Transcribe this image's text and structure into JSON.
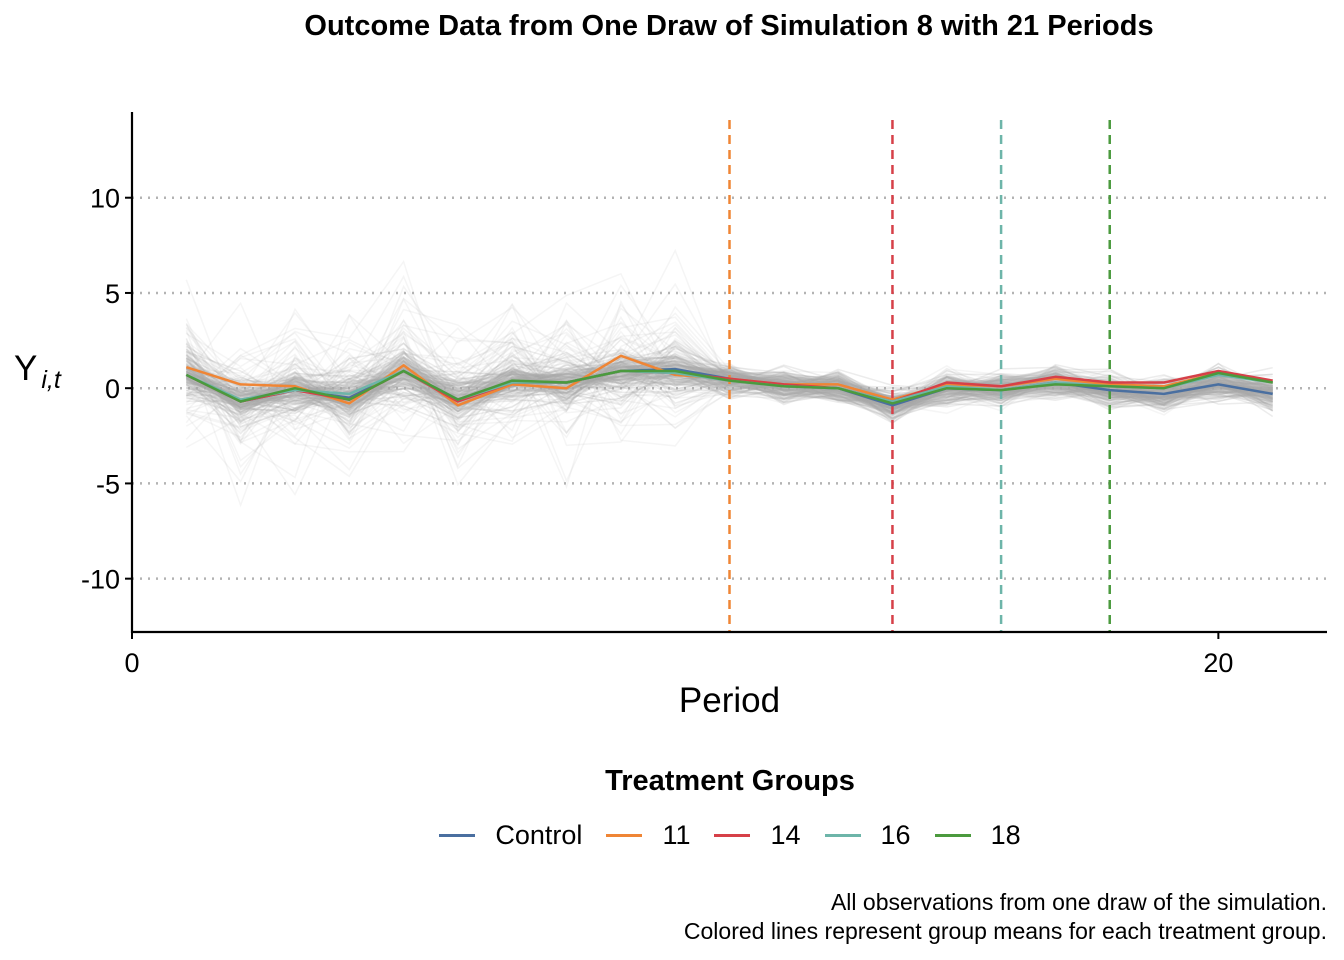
{
  "chart_data": {
    "type": "line",
    "title": "Outcome Data from One Draw of Simulation 8 with 21 Periods",
    "xlabel": "Period",
    "ylabel_main": "Y",
    "ylabel_sub": "i,t",
    "xlim": [
      0,
      22
    ],
    "ylim": [
      -12.8,
      14.5
    ],
    "xticks": [
      0,
      20
    ],
    "yticks": [
      -10,
      -5,
      0,
      5,
      10
    ],
    "ytick_labels": [
      "-10",
      "-5",
      "0",
      "5",
      "10"
    ],
    "grid": "horizontal dotted",
    "x": [
      1,
      2,
      3,
      4,
      5,
      6,
      7,
      8,
      9,
      10,
      11,
      12,
      13,
      14,
      15,
      16,
      17,
      18,
      19,
      20,
      21
    ],
    "series": [
      {
        "name": "Control",
        "color": "#4a6fa0",
        "values": [
          0.7,
          -0.7,
          -0.1,
          -0.5,
          0.9,
          -0.6,
          0.3,
          0.3,
          0.9,
          1.0,
          0.5,
          0.1,
          0.0,
          -0.9,
          0.0,
          -0.1,
          0.3,
          -0.1,
          -0.3,
          0.2,
          -0.3
        ]
      },
      {
        "name": "11",
        "color": "#ef8535",
        "values": [
          1.1,
          0.2,
          0.1,
          -0.8,
          1.2,
          -0.9,
          0.2,
          0.0,
          1.7,
          0.7,
          0.5,
          0.2,
          0.2,
          -0.6,
          0.2,
          0.1,
          0.5,
          0.2,
          0.1,
          0.8,
          0.3
        ]
      },
      {
        "name": "14",
        "color": "#d64048",
        "values": [
          0.7,
          -0.7,
          -0.1,
          -0.6,
          0.9,
          -0.7,
          0.3,
          0.3,
          0.9,
          0.8,
          0.5,
          0.2,
          0.0,
          -0.7,
          0.3,
          0.1,
          0.6,
          0.3,
          0.3,
          0.9,
          0.4
        ]
      },
      {
        "name": "16",
        "color": "#6db5a9",
        "values": [
          0.7,
          -0.6,
          -0.1,
          -0.3,
          0.9,
          -0.6,
          0.3,
          0.3,
          0.9,
          0.8,
          0.4,
          0.1,
          0.0,
          -0.7,
          0.1,
          -0.1,
          0.3,
          0.1,
          0.0,
          0.7,
          0.3
        ]
      },
      {
        "name": "18",
        "color": "#4b9a3e",
        "values": [
          0.7,
          -0.7,
          0.0,
          -0.6,
          0.9,
          -0.6,
          0.4,
          0.3,
          0.9,
          0.9,
          0.4,
          0.1,
          0.0,
          -0.8,
          0.0,
          -0.1,
          0.2,
          0.1,
          0.0,
          0.8,
          0.3
        ]
      }
    ],
    "treatment_lines": [
      {
        "x": 11,
        "color": "#ef8535"
      },
      {
        "x": 14,
        "color": "#d64048"
      },
      {
        "x": 16,
        "color": "#6db5a9"
      },
      {
        "x": 18,
        "color": "#4b9a3e"
      }
    ],
    "background_color": "#aaaaaa",
    "legend_title": "Treatment Groups",
    "legend_position": "bottom",
    "caption_line1": "All observations from one draw of the simulation.",
    "caption_line2": "Colored lines represent group means for each treatment group."
  }
}
